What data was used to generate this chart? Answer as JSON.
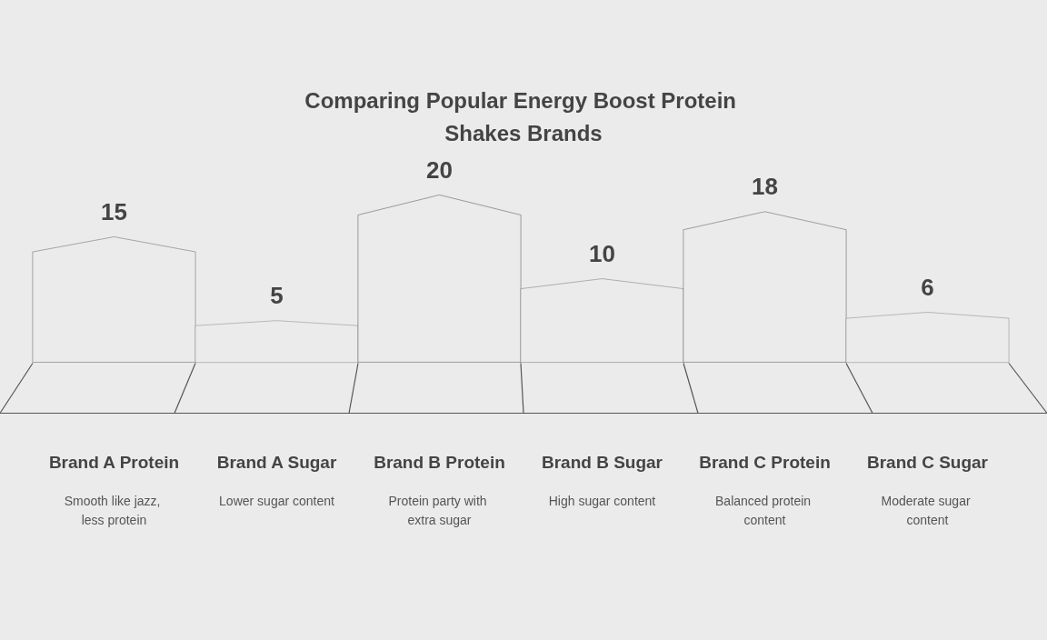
{
  "chart_data": {
    "type": "bar",
    "title": "Comparing Popular Energy Boost Protein Shakes Brands",
    "categories": [
      "Brand A Protein",
      "Brand A Sugar",
      "Brand B Protein",
      "Brand B Sugar",
      "Brand C Protein",
      "Brand C Sugar"
    ],
    "values": [
      15,
      5,
      20,
      10,
      18,
      6
    ],
    "color": "#555555",
    "data_labels": true,
    "tick_labels": "x",
    "annotations": [
      "Smooth like jazz, less protein",
      "Lower sugar content",
      "Protein party with extra sugar",
      "High sugar content",
      "Balanced protein content",
      "Moderate sugar content"
    ]
  }
}
